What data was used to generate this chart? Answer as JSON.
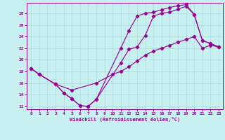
{
  "xlabel": "Windchill (Refroidissement éolien,°C)",
  "bg_color": "#c8f0f0",
  "line_color": "#990099",
  "grid_color": "#b0dede",
  "xlim": [
    -0.5,
    23.5
  ],
  "ylim": [
    11.5,
    29.8
  ],
  "xticks": [
    0,
    1,
    2,
    3,
    4,
    5,
    6,
    7,
    8,
    9,
    10,
    11,
    12,
    13,
    14,
    15,
    16,
    17,
    18,
    19,
    20,
    21,
    22,
    23
  ],
  "yticks": [
    12,
    14,
    16,
    18,
    20,
    22,
    24,
    26,
    28
  ],
  "line1_x": [
    0,
    1,
    3,
    4,
    5,
    6,
    7,
    8,
    11,
    12,
    13,
    14,
    15,
    16,
    17,
    18,
    19,
    20,
    21,
    22,
    23
  ],
  "line1_y": [
    18.5,
    17.5,
    15.8,
    14.3,
    13.3,
    12.1,
    12.0,
    13.2,
    19.5,
    21.8,
    22.2,
    24.2,
    27.5,
    28.0,
    28.2,
    28.7,
    29.2,
    27.8,
    23.3,
    22.8,
    22.2
  ],
  "line2_x": [
    0,
    1,
    3,
    4,
    5,
    6,
    7,
    8,
    11,
    12,
    13,
    14,
    15,
    16,
    17,
    18,
    19,
    20,
    21,
    22,
    23
  ],
  "line2_y": [
    18.5,
    17.5,
    15.8,
    14.3,
    13.3,
    12.1,
    12.0,
    13.2,
    22.0,
    25.0,
    27.5,
    28.0,
    28.2,
    28.6,
    29.0,
    29.3,
    29.5,
    27.8,
    23.3,
    22.8,
    22.2
  ],
  "line3_x": [
    0,
    1,
    3,
    5,
    8,
    10,
    11,
    12,
    13,
    14,
    15,
    16,
    17,
    18,
    19,
    20,
    21,
    22,
    23
  ],
  "line3_y": [
    18.5,
    17.5,
    15.8,
    14.8,
    16.0,
    17.5,
    18.0,
    18.8,
    19.8,
    20.8,
    21.5,
    22.0,
    22.5,
    23.0,
    23.5,
    24.0,
    22.0,
    22.5,
    22.2
  ]
}
